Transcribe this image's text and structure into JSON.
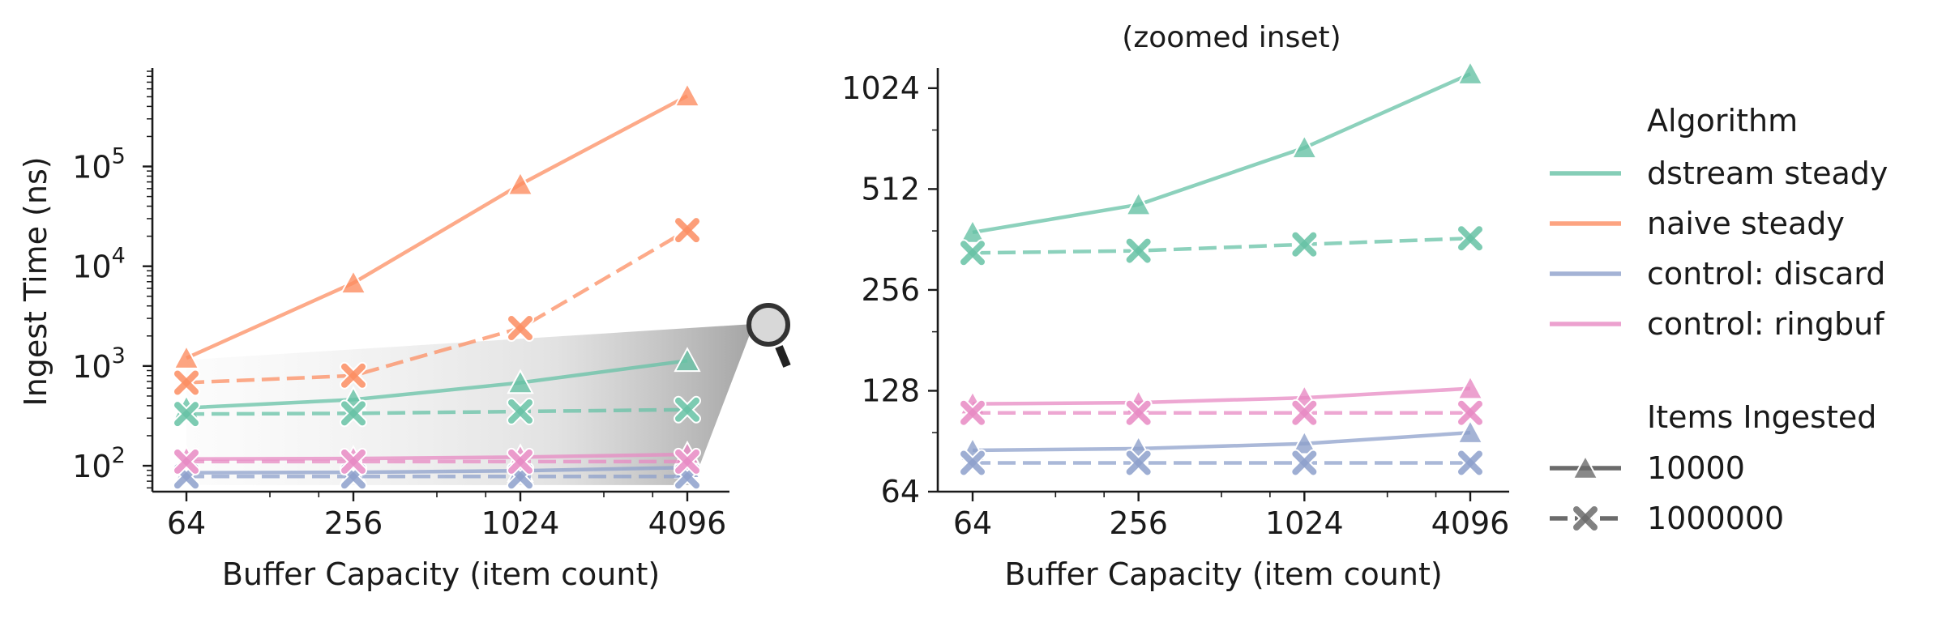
{
  "chart_data": [
    {
      "type": "line",
      "title": "",
      "xlabel": "Buffer Capacity (item count)",
      "ylabel": "Ingest Time (ns)",
      "x_scale": "log2",
      "y_scale": "log10",
      "x": [
        64,
        256,
        1024,
        4096
      ],
      "x_tick_labels": [
        "64",
        "256",
        "1024",
        "4096"
      ],
      "y_tick_values": [
        100,
        1000,
        10000,
        100000
      ],
      "y_tick_labels": [
        {
          "base": "10",
          "exp": "2"
        },
        {
          "base": "10",
          "exp": "3"
        },
        {
          "base": "10",
          "exp": "4"
        },
        {
          "base": "10",
          "exp": "5"
        }
      ],
      "ylim": [
        55,
        900000
      ],
      "grid": false,
      "inset_indicator": "magnifier-icon",
      "series": [
        {
          "algorithm": "dstream steady",
          "items": "10000",
          "values": [
            380,
            460,
            680,
            1130
          ]
        },
        {
          "algorithm": "dstream steady",
          "items": "1000000",
          "values": [
            330,
            335,
            350,
            365
          ]
        },
        {
          "algorithm": "naive steady",
          "items": "10000",
          "values": [
            1200,
            6800,
            66000,
            510000
          ]
        },
        {
          "algorithm": "naive steady",
          "items": "1000000",
          "values": [
            680,
            800,
            2400,
            23000
          ]
        },
        {
          "algorithm": "control: discard",
          "items": "10000",
          "values": [
            85,
            86,
            89,
            96
          ]
        },
        {
          "algorithm": "control: discard",
          "items": "1000000",
          "values": [
            78,
            78,
            78,
            78
          ]
        },
        {
          "algorithm": "control: ringbuf",
          "items": "10000",
          "values": [
            117,
            118,
            122,
            130
          ]
        },
        {
          "algorithm": "control: ringbuf",
          "items": "1000000",
          "values": [
            110,
            110,
            110,
            110
          ]
        }
      ]
    },
    {
      "type": "line",
      "title": "(zoomed inset)",
      "xlabel": "Buffer Capacity (item count)",
      "ylabel": "",
      "x_scale": "log2",
      "y_scale": "log2",
      "x": [
        64,
        256,
        1024,
        4096
      ],
      "x_tick_labels": [
        "64",
        "256",
        "1024",
        "4096"
      ],
      "y_tick_values": [
        64,
        128,
        256,
        512,
        1024
      ],
      "y_tick_labels": [
        "64",
        "128",
        "256",
        "512",
        "1024"
      ],
      "ylim": [
        64,
        1150
      ],
      "grid": false,
      "series": [
        {
          "algorithm": "dstream steady",
          "items": "10000",
          "values": [
            380,
            460,
            680,
            1130
          ]
        },
        {
          "algorithm": "dstream steady",
          "items": "1000000",
          "values": [
            330,
            335,
            350,
            365
          ]
        },
        {
          "algorithm": "control: discard",
          "items": "10000",
          "values": [
            85,
            86,
            89,
            96
          ]
        },
        {
          "algorithm": "control: discard",
          "items": "1000000",
          "values": [
            78,
            78,
            78,
            78
          ]
        },
        {
          "algorithm": "control: ringbuf",
          "items": "10000",
          "values": [
            117,
            118,
            122,
            130
          ]
        },
        {
          "algorithm": "control: ringbuf",
          "items": "1000000",
          "values": [
            110,
            110,
            110,
            110
          ]
        }
      ]
    }
  ],
  "legend": {
    "placement": "right",
    "algorithm_title": "Algorithm",
    "algorithms": [
      {
        "name": "dstream steady",
        "color": "#66c2a5"
      },
      {
        "name": "naive steady",
        "color": "#fc8d62"
      },
      {
        "name": "control: discard",
        "color": "#8da0cb"
      },
      {
        "name": "control: ringbuf",
        "color": "#e78ac3"
      }
    ],
    "items_title": "Items Ingested",
    "items": [
      {
        "name": "10000",
        "line": "solid",
        "marker": "triangle"
      },
      {
        "name": "1000000",
        "line": "dashed",
        "marker": "x"
      }
    ],
    "style_color": "#6b6b6b"
  }
}
